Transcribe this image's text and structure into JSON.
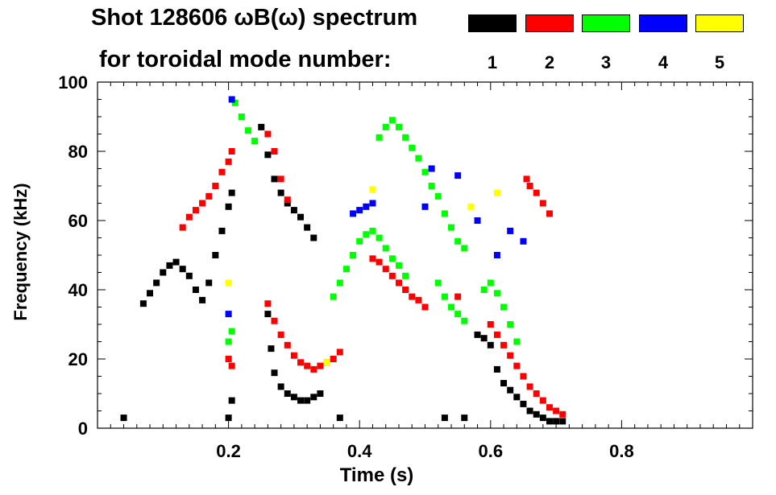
{
  "header": {
    "title_line1": "Shot 128606 ωB(ω) spectrum",
    "title_line2": "for toroidal mode number:"
  },
  "legend": [
    {
      "label": "1",
      "color": "#000000"
    },
    {
      "label": "2",
      "color": "#ff0000"
    },
    {
      "label": "3",
      "color": "#00ff00"
    },
    {
      "label": "4",
      "color": "#0000ff"
    },
    {
      "label": "5",
      "color": "#ffff00"
    }
  ],
  "chart_data": {
    "type": "scatter",
    "title": "Shot 128606 ωB(ω) spectrum for toroidal mode number",
    "xlabel": "Time (s)",
    "ylabel": "Frequency (kHz)",
    "xlim": [
      0.0,
      1.0
    ],
    "ylim": [
      0,
      100
    ],
    "xticks": [
      {
        "v": 0.2,
        "label": "0.2"
      },
      {
        "v": 0.4,
        "label": "0.4"
      },
      {
        "v": 0.6,
        "label": "0.6"
      },
      {
        "v": 0.8,
        "label": "0.8"
      }
    ],
    "yticks": [
      {
        "v": 0,
        "label": "0"
      },
      {
        "v": 20,
        "label": "20"
      },
      {
        "v": 40,
        "label": "40"
      },
      {
        "v": 60,
        "label": "60"
      },
      {
        "v": 80,
        "label": "80"
      },
      {
        "v": 100,
        "label": "100"
      }
    ],
    "series": [
      {
        "name": "n=1",
        "color": "#000000",
        "points": [
          [
            0.07,
            36
          ],
          [
            0.08,
            39
          ],
          [
            0.09,
            42
          ],
          [
            0.1,
            45
          ],
          [
            0.11,
            47
          ],
          [
            0.12,
            48
          ],
          [
            0.13,
            46
          ],
          [
            0.14,
            44
          ],
          [
            0.15,
            40
          ],
          [
            0.16,
            37
          ],
          [
            0.17,
            42
          ],
          [
            0.18,
            50
          ],
          [
            0.19,
            57
          ],
          [
            0.2,
            64
          ],
          [
            0.205,
            68
          ],
          [
            0.2,
            3
          ],
          [
            0.205,
            8
          ],
          [
            0.25,
            87
          ],
          [
            0.26,
            79
          ],
          [
            0.27,
            72
          ],
          [
            0.28,
            68
          ],
          [
            0.29,
            65
          ],
          [
            0.3,
            63
          ],
          [
            0.31,
            61
          ],
          [
            0.32,
            58
          ],
          [
            0.33,
            55
          ],
          [
            0.26,
            33
          ],
          [
            0.265,
            23
          ],
          [
            0.27,
            16
          ],
          [
            0.28,
            12
          ],
          [
            0.29,
            10
          ],
          [
            0.3,
            9
          ],
          [
            0.31,
            8
          ],
          [
            0.32,
            8
          ],
          [
            0.33,
            9
          ],
          [
            0.34,
            10
          ],
          [
            0.58,
            27
          ],
          [
            0.59,
            26
          ],
          [
            0.6,
            24
          ],
          [
            0.61,
            17
          ],
          [
            0.62,
            13
          ],
          [
            0.63,
            11
          ],
          [
            0.64,
            9
          ],
          [
            0.65,
            7
          ],
          [
            0.66,
            5
          ],
          [
            0.67,
            4
          ],
          [
            0.68,
            3
          ],
          [
            0.69,
            2
          ],
          [
            0.7,
            2
          ],
          [
            0.71,
            2
          ],
          [
            0.04,
            3
          ],
          [
            0.37,
            3
          ],
          [
            0.53,
            3
          ],
          [
            0.56,
            3
          ]
        ]
      },
      {
        "name": "n=2",
        "color": "#ff0000",
        "points": [
          [
            0.13,
            58
          ],
          [
            0.14,
            61
          ],
          [
            0.15,
            63
          ],
          [
            0.16,
            65
          ],
          [
            0.17,
            67
          ],
          [
            0.18,
            70
          ],
          [
            0.19,
            74
          ],
          [
            0.2,
            77
          ],
          [
            0.205,
            80
          ],
          [
            0.2,
            20
          ],
          [
            0.205,
            18
          ],
          [
            0.26,
            85
          ],
          [
            0.27,
            80
          ],
          [
            0.28,
            72
          ],
          [
            0.29,
            66
          ],
          [
            0.26,
            36
          ],
          [
            0.27,
            31
          ],
          [
            0.28,
            27
          ],
          [
            0.29,
            24
          ],
          [
            0.3,
            21
          ],
          [
            0.31,
            19
          ],
          [
            0.32,
            18
          ],
          [
            0.33,
            17
          ],
          [
            0.34,
            18
          ],
          [
            0.35,
            19
          ],
          [
            0.36,
            20
          ],
          [
            0.37,
            22
          ],
          [
            0.42,
            49
          ],
          [
            0.43,
            48
          ],
          [
            0.44,
            46
          ],
          [
            0.45,
            44
          ],
          [
            0.46,
            42
          ],
          [
            0.47,
            40
          ],
          [
            0.48,
            38
          ],
          [
            0.49,
            37
          ],
          [
            0.5,
            35
          ],
          [
            0.55,
            38
          ],
          [
            0.6,
            30
          ],
          [
            0.61,
            27
          ],
          [
            0.62,
            24
          ],
          [
            0.63,
            21
          ],
          [
            0.64,
            18
          ],
          [
            0.65,
            15
          ],
          [
            0.66,
            12
          ],
          [
            0.67,
            10
          ],
          [
            0.68,
            8
          ],
          [
            0.69,
            6
          ],
          [
            0.7,
            5
          ],
          [
            0.71,
            4
          ],
          [
            0.655,
            72
          ],
          [
            0.66,
            70
          ],
          [
            0.67,
            68
          ],
          [
            0.68,
            65
          ],
          [
            0.69,
            62
          ]
        ]
      },
      {
        "name": "n=3",
        "color": "#00ff00",
        "points": [
          [
            0.21,
            94
          ],
          [
            0.22,
            90
          ],
          [
            0.23,
            86
          ],
          [
            0.24,
            83
          ],
          [
            0.2,
            25
          ],
          [
            0.205,
            28
          ],
          [
            0.36,
            38
          ],
          [
            0.37,
            42
          ],
          [
            0.38,
            46
          ],
          [
            0.39,
            50
          ],
          [
            0.4,
            54
          ],
          [
            0.41,
            56
          ],
          [
            0.42,
            57
          ],
          [
            0.43,
            55
          ],
          [
            0.44,
            52
          ],
          [
            0.45,
            49
          ],
          [
            0.46,
            47
          ],
          [
            0.47,
            44
          ],
          [
            0.43,
            84
          ],
          [
            0.44,
            87
          ],
          [
            0.45,
            89
          ],
          [
            0.46,
            87
          ],
          [
            0.47,
            84
          ],
          [
            0.48,
            81
          ],
          [
            0.49,
            78
          ],
          [
            0.5,
            74
          ],
          [
            0.51,
            70
          ],
          [
            0.52,
            67
          ],
          [
            0.53,
            62
          ],
          [
            0.54,
            58
          ],
          [
            0.55,
            54
          ],
          [
            0.56,
            52
          ],
          [
            0.52,
            42
          ],
          [
            0.53,
            38
          ],
          [
            0.54,
            35
          ],
          [
            0.55,
            33
          ],
          [
            0.56,
            31
          ],
          [
            0.59,
            40
          ],
          [
            0.6,
            42
          ],
          [
            0.61,
            39
          ],
          [
            0.62,
            35
          ],
          [
            0.63,
            30
          ],
          [
            0.64,
            25
          ]
        ]
      },
      {
        "name": "n=4",
        "color": "#0000ff",
        "points": [
          [
            0.205,
            95
          ],
          [
            0.39,
            62
          ],
          [
            0.4,
            63
          ],
          [
            0.41,
            64
          ],
          [
            0.42,
            65
          ],
          [
            0.5,
            64
          ],
          [
            0.51,
            75
          ],
          [
            0.55,
            73
          ],
          [
            0.58,
            60
          ],
          [
            0.61,
            50
          ],
          [
            0.63,
            57
          ],
          [
            0.65,
            54
          ],
          [
            0.2,
            33
          ]
        ]
      },
      {
        "name": "n=5",
        "color": "#ffff00",
        "points": [
          [
            0.2,
            42
          ],
          [
            0.35,
            19
          ],
          [
            0.42,
            69
          ],
          [
            0.57,
            64
          ],
          [
            0.61,
            68
          ]
        ]
      }
    ]
  }
}
